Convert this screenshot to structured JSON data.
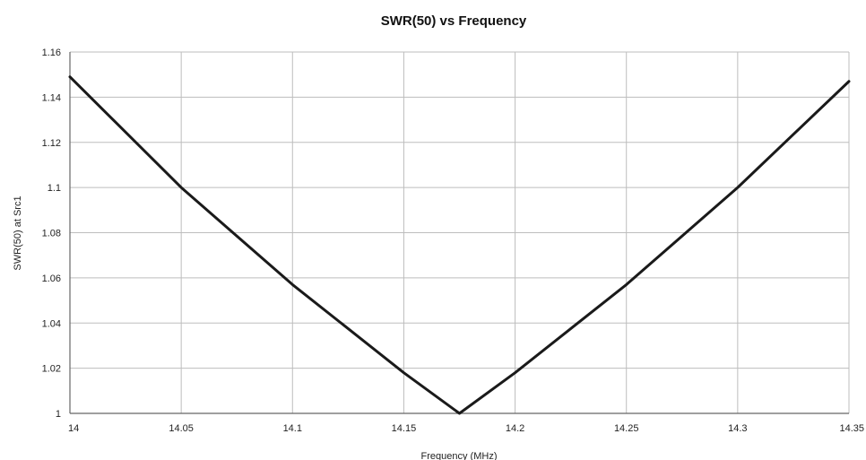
{
  "chart_data": {
    "type": "line",
    "title": "SWR(50)  vs  Frequency",
    "xlabel": "Frequency (MHz)",
    "ylabel": "SWR(50) at Src1",
    "xlim": [
      14,
      14.35
    ],
    "ylim": [
      1,
      1.16
    ],
    "xticks": [
      "14",
      "14.05",
      "14.1",
      "14.15",
      "14.2",
      "14.25",
      "14.3",
      "14.35"
    ],
    "yticks": [
      "1",
      "1.02",
      "1.04",
      "1.06",
      "1.08",
      "1.1",
      "1.12",
      "1.14",
      "1.16"
    ],
    "grid": true,
    "series": [
      {
        "x": [
          14.0,
          14.05,
          14.1,
          14.15,
          14.175,
          14.2,
          14.25,
          14.3,
          14.35
        ],
        "y": [
          1.149,
          1.1,
          1.057,
          1.018,
          1.0,
          1.018,
          1.057,
          1.1,
          1.147
        ]
      }
    ],
    "colors": {
      "line": "#1a1a1a",
      "grid": "#bdbdbd",
      "axis": "#666666"
    }
  }
}
